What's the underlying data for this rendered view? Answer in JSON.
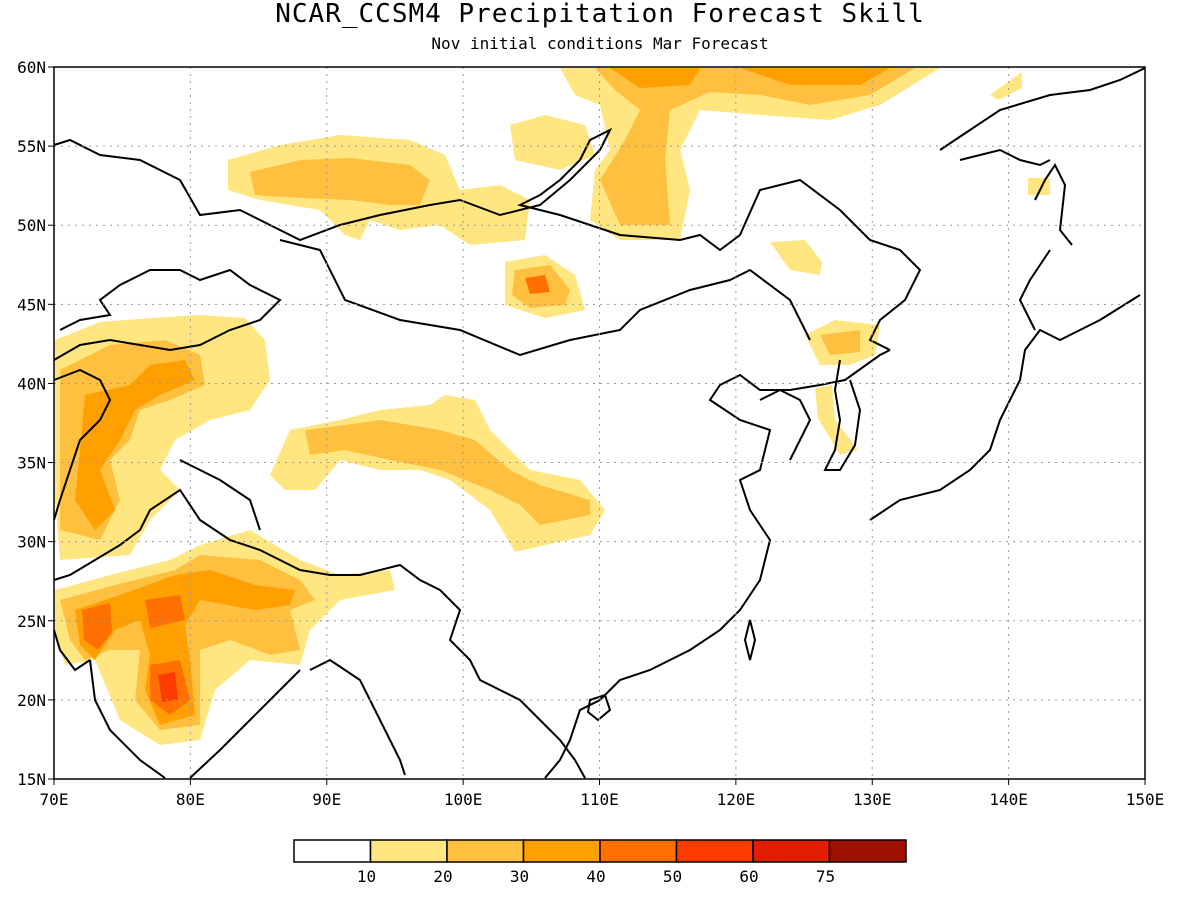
{
  "title": "NCAR_CCSM4 Precipitation Forecast Skill",
  "subtitle": "Nov initial conditions  Mar Forecast",
  "map": {
    "lon_range": [
      70,
      150
    ],
    "lat_range": [
      15,
      60
    ],
    "x_ticks": [
      "70E",
      "80E",
      "90E",
      "100E",
      "110E",
      "120E",
      "130E",
      "140E",
      "150E"
    ],
    "y_ticks": [
      "15N",
      "20N",
      "25N",
      "30N",
      "35N",
      "40N",
      "45N",
      "50N",
      "55N",
      "60N"
    ],
    "gridlines": "dotted"
  },
  "colorbar": {
    "colors": [
      "#ffffff",
      "#ffe680",
      "#ffc040",
      "#ffa000",
      "#ff7000",
      "#ff3c00",
      "#e01e00",
      "#a01000"
    ],
    "labels": [
      "10",
      "20",
      "30",
      "40",
      "50",
      "60",
      "75"
    ]
  }
}
